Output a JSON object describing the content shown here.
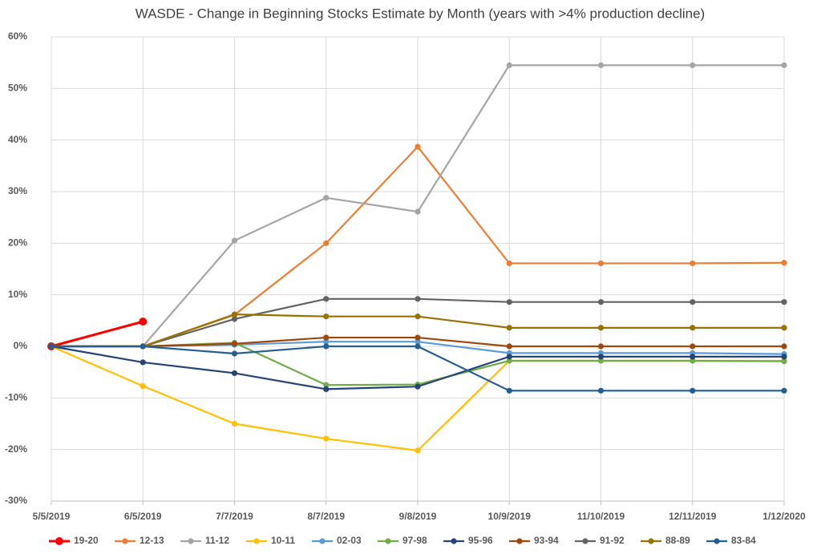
{
  "chart_data": {
    "type": "line",
    "title": "WASDE - Change in Beginning Stocks Estimate by Month (years with >4% production decline)",
    "categories": [
      "5/5/2019",
      "6/5/2019",
      "7/7/2019",
      "8/7/2019",
      "9/8/2019",
      "10/9/2019",
      "11/10/2019",
      "12/11/2019",
      "1/12/2020"
    ],
    "ylim": [
      -30,
      60
    ],
    "yticks": [
      {
        "value": -30,
        "label": "-30%"
      },
      {
        "value": -20,
        "label": "-20%"
      },
      {
        "value": -10,
        "label": "-10%"
      },
      {
        "value": 0,
        "label": "0%"
      },
      {
        "value": 10,
        "label": "10%"
      },
      {
        "value": 20,
        "label": "20%"
      },
      {
        "value": 30,
        "label": "30%"
      },
      {
        "value": 40,
        "label": "40%"
      },
      {
        "value": 50,
        "label": "50%"
      },
      {
        "value": 60,
        "label": "60%"
      }
    ],
    "grid": true,
    "legend": "bottom",
    "series": [
      {
        "name": "19-20",
        "color": "#ff0000",
        "values": [
          0,
          4.8,
          null,
          null,
          null,
          null,
          null,
          null,
          null
        ]
      },
      {
        "name": "12-13",
        "color": "#ed7d31",
        "values": [
          0,
          0,
          6.1,
          20,
          38.7,
          16.1,
          16.1,
          16.1,
          16.2
        ]
      },
      {
        "name": "11-12",
        "color": "#a5a5a5",
        "values": [
          0,
          0,
          20.5,
          28.8,
          26.1,
          54.5,
          54.5,
          54.5,
          54.5
        ]
      },
      {
        "name": "10-11",
        "color": "#ffc000",
        "values": [
          0,
          -7.7,
          -15,
          -17.9,
          -20.2,
          -2.8,
          -2.8,
          -2.8,
          -2.8
        ]
      },
      {
        "name": "02-03",
        "color": "#5b9bd5",
        "values": [
          0,
          0,
          0.3,
          0.9,
          0.9,
          -1.3,
          -1.3,
          -1.3,
          -1.5
        ]
      },
      {
        "name": "97-98",
        "color": "#70ad47",
        "values": [
          0,
          0,
          0.7,
          -7.5,
          -7.4,
          -2.8,
          -2.8,
          -2.8,
          -2.9
        ]
      },
      {
        "name": "95-96",
        "color": "#264478",
        "values": [
          0,
          -3.1,
          -5.2,
          -8.3,
          -7.8,
          -2,
          -2,
          -2,
          -2
        ]
      },
      {
        "name": "93-94",
        "color": "#9e480e",
        "values": [
          0,
          0,
          0.5,
          1.7,
          1.7,
          0,
          0,
          0,
          0
        ]
      },
      {
        "name": "91-92",
        "color": "#636363",
        "values": [
          0,
          0,
          5.3,
          9.2,
          9.2,
          8.6,
          8.6,
          8.6,
          8.6
        ]
      },
      {
        "name": "88-89",
        "color": "#997300",
        "values": [
          0,
          0,
          6.2,
          5.8,
          5.8,
          3.6,
          3.6,
          3.6,
          3.6
        ]
      },
      {
        "name": "83-84",
        "color": "#255e91",
        "values": [
          0,
          0,
          -1.4,
          0,
          0,
          -8.6,
          -8.6,
          -8.6,
          -8.6
        ]
      }
    ]
  }
}
